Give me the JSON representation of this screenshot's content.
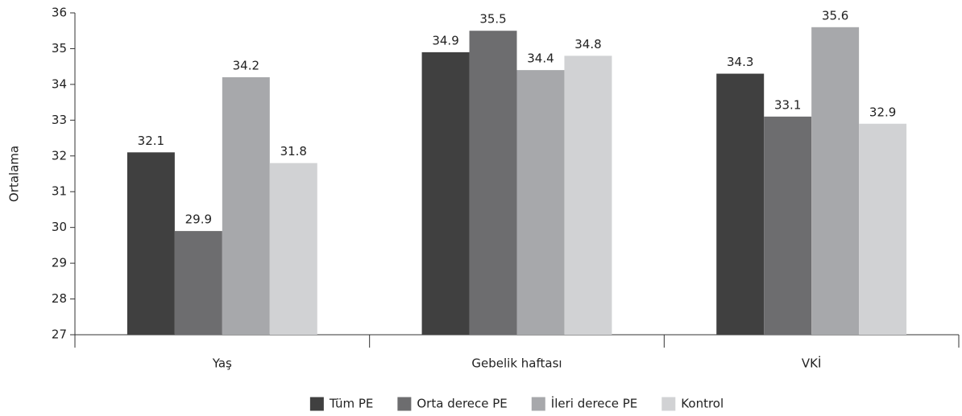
{
  "chart_data": {
    "type": "bar",
    "y_label": "Ortalama",
    "categories": [
      "Yaş",
      "Gebelik haftası",
      "VKİ"
    ],
    "series": [
      {
        "name": "Tüm PE",
        "color": "#404040",
        "values": [
          32.1,
          34.9,
          34.3
        ]
      },
      {
        "name": "Orta derece PE",
        "color": "#6d6d6f",
        "values": [
          29.9,
          35.5,
          33.1
        ]
      },
      {
        "name": "İleri derece PE",
        "color": "#a7a8ab",
        "values": [
          34.2,
          34.4,
          35.6
        ]
      },
      {
        "name": "Kontrol",
        "color": "#d1d2d4",
        "values": [
          31.8,
          34.8,
          32.9
        ]
      }
    ],
    "ylim": [
      27,
      36
    ],
    "yticks": [
      27,
      28,
      29,
      30,
      31,
      32,
      33,
      34,
      35,
      36
    ],
    "grid": false,
    "legend": "bottom"
  }
}
